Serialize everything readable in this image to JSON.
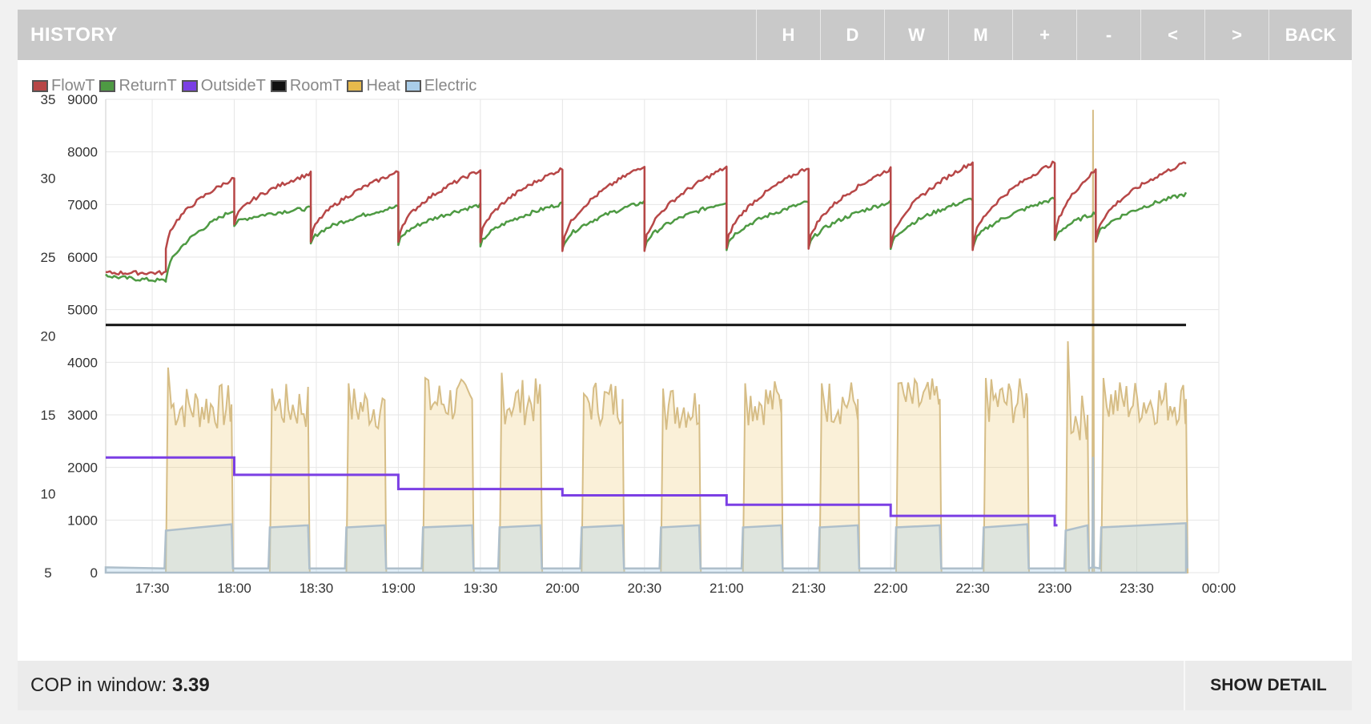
{
  "header": {
    "title": "HISTORY",
    "buttons": {
      "hour": "H",
      "day": "D",
      "week": "W",
      "month": "M",
      "zoom_in": "+",
      "zoom_out": "-",
      "prev": "<",
      "next": ">",
      "back": "BACK"
    }
  },
  "footer": {
    "cop_label": "COP in window:",
    "cop_value": "3.39",
    "show_detail": "SHOW DETAIL"
  },
  "chart_data": {
    "type": "line",
    "title": "",
    "legend_placement": "top-left",
    "grid": true,
    "x_axis": {
      "start": "17:13",
      "end": "00:00",
      "ticks": [
        "17:30",
        "18:00",
        "18:30",
        "19:00",
        "19:30",
        "20:00",
        "20:30",
        "21:00",
        "21:30",
        "22:00",
        "22:30",
        "23:00",
        "23:30",
        "00:00"
      ]
    },
    "y_left": {
      "label": "",
      "range": [
        5,
        35
      ],
      "ticks": [
        5,
        10,
        15,
        20,
        25,
        30,
        35
      ]
    },
    "y_right": {
      "label": "",
      "range": [
        0,
        9000
      ],
      "ticks": [
        0,
        1000,
        2000,
        3000,
        4000,
        5000,
        6000,
        7000,
        8000,
        9000
      ]
    },
    "series": [
      {
        "name": "FlowT",
        "color": "#b74747",
        "axis": "left",
        "cycles": [
          {
            "start": "17:13",
            "end": "17:35",
            "from": 24.0,
            "to": 24.0
          },
          {
            "start": "17:35",
            "end": "18:00",
            "from": 25.5,
            "to": 30.0
          },
          {
            "start": "18:00",
            "end": "18:28",
            "from": 27.0,
            "to": 30.3
          },
          {
            "start": "18:28",
            "end": "19:00",
            "from": 26.0,
            "to": 30.4
          },
          {
            "start": "19:00",
            "end": "19:30",
            "from": 26.0,
            "to": 30.5
          },
          {
            "start": "19:30",
            "end": "20:00",
            "from": 26.0,
            "to": 30.6
          },
          {
            "start": "20:00",
            "end": "20:30",
            "from": 25.5,
            "to": 30.8
          },
          {
            "start": "20:30",
            "end": "21:00",
            "from": 25.5,
            "to": 30.7
          },
          {
            "start": "21:00",
            "end": "21:30",
            "from": 25.5,
            "to": 30.7
          },
          {
            "start": "21:30",
            "end": "22:00",
            "from": 25.5,
            "to": 30.6
          },
          {
            "start": "22:00",
            "end": "22:30",
            "from": 25.5,
            "to": 31.0
          },
          {
            "start": "22:30",
            "end": "23:00",
            "from": 25.5,
            "to": 31.0
          },
          {
            "start": "23:00",
            "end": "23:15",
            "from": 26.0,
            "to": 30.5
          },
          {
            "start": "23:15",
            "end": "23:48",
            "from": 26.0,
            "to": 31.0
          }
        ]
      },
      {
        "name": "ReturnT",
        "color": "#4e9a43",
        "axis": "left",
        "cycles": [
          {
            "start": "17:13",
            "end": "17:35",
            "from": 23.9,
            "to": 23.5
          },
          {
            "start": "17:35",
            "end": "18:00",
            "from": 23.5,
            "to": 28.0
          },
          {
            "start": "18:00",
            "end": "18:28",
            "from": 27.0,
            "to": 28.1
          },
          {
            "start": "18:28",
            "end": "19:00",
            "from": 25.8,
            "to": 28.2
          },
          {
            "start": "19:00",
            "end": "19:30",
            "from": 25.8,
            "to": 28.3
          },
          {
            "start": "19:30",
            "end": "20:00",
            "from": 25.6,
            "to": 28.4
          },
          {
            "start": "20:00",
            "end": "20:30",
            "from": 25.5,
            "to": 28.5
          },
          {
            "start": "20:30",
            "end": "21:00",
            "from": 25.5,
            "to": 28.5
          },
          {
            "start": "21:00",
            "end": "21:30",
            "from": 25.5,
            "to": 28.5
          },
          {
            "start": "21:30",
            "end": "22:00",
            "from": 25.5,
            "to": 28.5
          },
          {
            "start": "22:00",
            "end": "22:30",
            "from": 25.5,
            "to": 28.7
          },
          {
            "start": "22:30",
            "end": "23:00",
            "from": 25.5,
            "to": 28.7
          },
          {
            "start": "23:00",
            "end": "23:15",
            "from": 26.0,
            "to": 27.8
          },
          {
            "start": "23:15",
            "end": "23:48",
            "from": 26.0,
            "to": 29.0
          }
        ]
      },
      {
        "name": "OutsideT",
        "color": "#7b3fe4",
        "axis": "left",
        "steps": [
          {
            "start": "17:13",
            "end": "18:00",
            "value": 12.3
          },
          {
            "start": "18:00",
            "end": "19:00",
            "value": 11.2
          },
          {
            "start": "19:00",
            "end": "20:00",
            "value": 10.3
          },
          {
            "start": "20:00",
            "end": "21:00",
            "value": 9.9
          },
          {
            "start": "21:00",
            "end": "22:00",
            "value": 9.3
          },
          {
            "start": "22:00",
            "end": "23:00",
            "value": 8.6
          },
          {
            "start": "23:00",
            "end": "23:01",
            "value": 8.0
          }
        ]
      },
      {
        "name": "RoomT",
        "color": "#111111",
        "axis": "left",
        "range": [
          "17:13",
          "23:48"
        ],
        "value": 20.7
      },
      {
        "name": "Heat",
        "color": "#e6b94c",
        "axis": "right",
        "unit": "W",
        "on_periods": [
          {
            "start": "17:35",
            "end": "17:59",
            "level": 3200,
            "peak": 3900
          },
          {
            "start": "18:13",
            "end": "18:27",
            "level": 3200,
            "peak": 3500
          },
          {
            "start": "18:41",
            "end": "18:55",
            "level": 3200,
            "peak": 3600
          },
          {
            "start": "19:09",
            "end": "19:27",
            "level": 3300,
            "peak": 3700
          },
          {
            "start": "19:37",
            "end": "19:52",
            "level": 3300,
            "peak": 3800
          },
          {
            "start": "20:07",
            "end": "20:22",
            "level": 3300,
            "peak": 3400
          },
          {
            "start": "20:36",
            "end": "20:50",
            "level": 3200,
            "peak": 3500
          },
          {
            "start": "21:06",
            "end": "21:20",
            "level": 3300,
            "peak": 3600
          },
          {
            "start": "21:34",
            "end": "21:48",
            "level": 3300,
            "peak": 3600
          },
          {
            "start": "22:02",
            "end": "22:18",
            "level": 3300,
            "peak": 3600
          },
          {
            "start": "22:34",
            "end": "22:50",
            "level": 3300,
            "peak": 3700
          },
          {
            "start": "23:04",
            "end": "23:12",
            "level": 3000,
            "peak": 4400
          },
          {
            "start": "23:17",
            "end": "23:48",
            "level": 3300,
            "peak": 3700
          }
        ],
        "spike": {
          "time": "23:14",
          "value": 8800
        }
      },
      {
        "name": "Electric",
        "color": "#a9cde9",
        "axis": "right",
        "unit": "W",
        "on_periods": [
          {
            "start": "17:35",
            "end": "17:59",
            "from": 800,
            "to": 920
          },
          {
            "start": "18:13",
            "end": "18:27",
            "from": 860,
            "to": 900
          },
          {
            "start": "18:41",
            "end": "18:55",
            "from": 860,
            "to": 900
          },
          {
            "start": "19:09",
            "end": "19:27",
            "from": 860,
            "to": 900
          },
          {
            "start": "19:37",
            "end": "19:52",
            "from": 860,
            "to": 900
          },
          {
            "start": "20:07",
            "end": "20:22",
            "from": 860,
            "to": 900
          },
          {
            "start": "20:36",
            "end": "20:50",
            "from": 860,
            "to": 900
          },
          {
            "start": "21:06",
            "end": "21:20",
            "from": 860,
            "to": 900
          },
          {
            "start": "21:34",
            "end": "21:48",
            "from": 860,
            "to": 900
          },
          {
            "start": "22:02",
            "end": "22:18",
            "from": 860,
            "to": 900
          },
          {
            "start": "22:34",
            "end": "22:50",
            "from": 860,
            "to": 920
          },
          {
            "start": "23:04",
            "end": "23:12",
            "from": 800,
            "to": 900
          },
          {
            "start": "23:17",
            "end": "23:48",
            "from": 860,
            "to": 940
          }
        ],
        "spike": {
          "time": "23:14",
          "value": 2200
        }
      }
    ]
  }
}
